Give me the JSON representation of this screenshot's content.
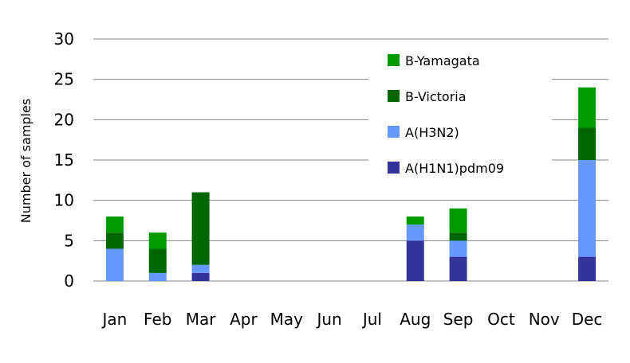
{
  "chart_data": {
    "type": "bar",
    "stacked": true,
    "ylabel": "Number of samples",
    "xlabel": "",
    "ylim": [
      0,
      30
    ],
    "yticks": [
      0,
      5,
      10,
      15,
      20,
      25,
      30
    ],
    "grid": true,
    "legend_position": "top-right",
    "categories": [
      "Jan",
      "Feb",
      "Mar",
      "Apr",
      "May",
      "Jun",
      "Jul",
      "Aug",
      "Sep",
      "Oct",
      "Nov",
      "Dec"
    ],
    "series": [
      {
        "name": "A(H1N1)pdm09",
        "color": "#333399",
        "values": [
          0,
          0,
          1,
          0,
          0,
          0,
          0,
          5,
          3,
          0,
          0,
          3
        ]
      },
      {
        "name": "A(H3N2)",
        "color": "#6699ff",
        "values": [
          4,
          1,
          1,
          0,
          0,
          0,
          0,
          2,
          2,
          0,
          0,
          12
        ]
      },
      {
        "name": "B-Victoria",
        "color": "#006600",
        "values": [
          2,
          3,
          9,
          0,
          0,
          0,
          0,
          0,
          1,
          0,
          0,
          4
        ]
      },
      {
        "name": "B-Yamagata",
        "color": "#009900",
        "values": [
          2,
          2,
          0,
          0,
          0,
          0,
          0,
          1,
          3,
          0,
          0,
          5
        ]
      }
    ],
    "legend_order": [
      "B-Yamagata",
      "B-Victoria",
      "A(H3N2)",
      "A(H1N1)pdm09"
    ]
  }
}
